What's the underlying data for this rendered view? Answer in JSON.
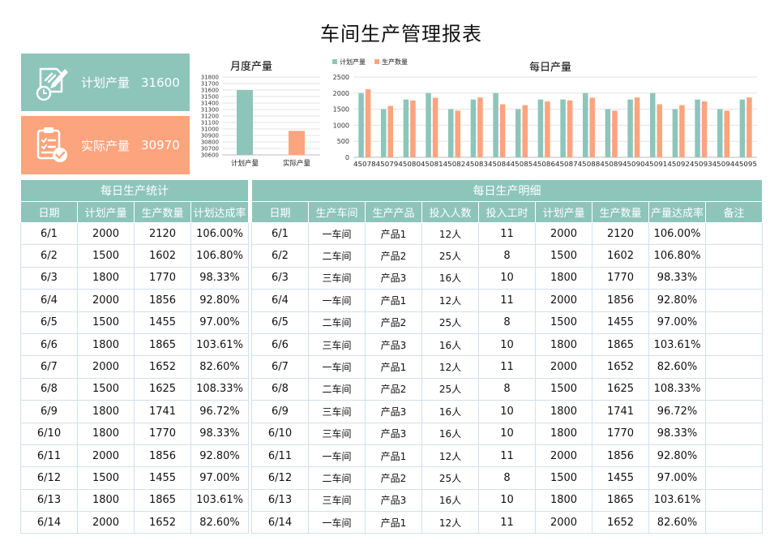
{
  "report": {
    "title": "车间生产管理报表"
  },
  "kpi": {
    "plan": {
      "label": "计划产量",
      "value": "31600",
      "icon": "clipboard-pen-clock-icon"
    },
    "actual": {
      "label": "实际产量",
      "value": "30970",
      "icon": "checklist-check-icon"
    }
  },
  "chart_data": [
    {
      "type": "bar",
      "title": "月度产量",
      "categories": [
        "计划产量",
        "实际产量"
      ],
      "values": [
        31600,
        30970
      ],
      "colors": [
        "#8dc5bb",
        "#fca47d"
      ],
      "ylim": [
        30600,
        31800
      ],
      "yticks": [
        30600,
        30700,
        30800,
        30900,
        31000,
        31100,
        31200,
        31300,
        31400,
        31500,
        31600,
        31700,
        31800
      ],
      "grid": true
    },
    {
      "type": "bar",
      "title": "每日产量",
      "categories": [
        "45078",
        "45079",
        "45080",
        "45081",
        "45082",
        "45083",
        "45084",
        "45085",
        "45086",
        "45087",
        "45088",
        "45089",
        "45090",
        "45091",
        "45092",
        "45093",
        "45094",
        "45095"
      ],
      "series": [
        {
          "name": "计划产量",
          "color": "#8dc5bb",
          "values": [
            2000,
            1500,
            1800,
            2000,
            1500,
            1800,
            2000,
            1500,
            1800,
            1800,
            2000,
            1500,
            1800,
            2000,
            1500,
            1800,
            1500,
            1800
          ]
        },
        {
          "name": "生产数量",
          "color": "#fca47d",
          "values": [
            2120,
            1602,
            1770,
            1856,
            1455,
            1865,
            1652,
            1625,
            1741,
            1770,
            1856,
            1455,
            1865,
            1652,
            1625,
            1741,
            1455,
            1865
          ]
        }
      ],
      "ylim": [
        0,
        2500
      ],
      "yticks": [
        0,
        500,
        1000,
        1500,
        2000,
        2500
      ],
      "legend": "top-left",
      "grid": true
    }
  ],
  "table_summary": {
    "title": "每日生产统计",
    "headers": [
      "日期",
      "计划产量",
      "生产数量",
      "计划达成率"
    ],
    "rows": [
      [
        "6/1",
        "2000",
        "2120",
        "106.00%"
      ],
      [
        "6/2",
        "1500",
        "1602",
        "106.80%"
      ],
      [
        "6/3",
        "1800",
        "1770",
        "98.33%"
      ],
      [
        "6/4",
        "2000",
        "1856",
        "92.80%"
      ],
      [
        "6/5",
        "1500",
        "1455",
        "97.00%"
      ],
      [
        "6/6",
        "1800",
        "1865",
        "103.61%"
      ],
      [
        "6/7",
        "2000",
        "1652",
        "82.60%"
      ],
      [
        "6/8",
        "1500",
        "1625",
        "108.33%"
      ],
      [
        "6/9",
        "1800",
        "1741",
        "96.72%"
      ],
      [
        "6/10",
        "1800",
        "1770",
        "98.33%"
      ],
      [
        "6/11",
        "2000",
        "1856",
        "92.80%"
      ],
      [
        "6/12",
        "1500",
        "1455",
        "97.00%"
      ],
      [
        "6/13",
        "1800",
        "1865",
        "103.61%"
      ],
      [
        "6/14",
        "2000",
        "1652",
        "82.60%"
      ]
    ]
  },
  "table_detail": {
    "title": "每日生产明细",
    "headers": [
      "日期",
      "生产车间",
      "生产产品",
      "投入人数",
      "投入工时",
      "计划产量",
      "生产数量",
      "产量达成率",
      "备注"
    ],
    "rows": [
      [
        "6/1",
        "一车间",
        "产品1",
        "12人",
        "11",
        "2000",
        "2120",
        "106.00%",
        ""
      ],
      [
        "6/2",
        "二车间",
        "产品2",
        "25人",
        "8",
        "1500",
        "1602",
        "106.80%",
        ""
      ],
      [
        "6/3",
        "三车间",
        "产品3",
        "16人",
        "10",
        "1800",
        "1770",
        "98.33%",
        ""
      ],
      [
        "6/4",
        "一车间",
        "产品1",
        "12人",
        "11",
        "2000",
        "1856",
        "92.80%",
        ""
      ],
      [
        "6/5",
        "二车间",
        "产品2",
        "25人",
        "8",
        "1500",
        "1455",
        "97.00%",
        ""
      ],
      [
        "6/6",
        "三车间",
        "产品3",
        "16人",
        "10",
        "1800",
        "1865",
        "103.61%",
        ""
      ],
      [
        "6/7",
        "一车间",
        "产品1",
        "12人",
        "11",
        "2000",
        "1652",
        "82.60%",
        ""
      ],
      [
        "6/8",
        "二车间",
        "产品2",
        "25人",
        "8",
        "1500",
        "1625",
        "108.33%",
        ""
      ],
      [
        "6/9",
        "三车间",
        "产品3",
        "16人",
        "10",
        "1800",
        "1741",
        "96.72%",
        ""
      ],
      [
        "6/10",
        "三车间",
        "产品3",
        "16人",
        "10",
        "1800",
        "1770",
        "98.33%",
        ""
      ],
      [
        "6/11",
        "一车间",
        "产品1",
        "12人",
        "11",
        "2000",
        "1856",
        "92.80%",
        ""
      ],
      [
        "6/12",
        "二车间",
        "产品2",
        "25人",
        "8",
        "1500",
        "1455",
        "97.00%",
        ""
      ],
      [
        "6/13",
        "三车间",
        "产品3",
        "16人",
        "10",
        "1800",
        "1865",
        "103.61%",
        ""
      ],
      [
        "6/14",
        "一车间",
        "产品1",
        "12人",
        "11",
        "2000",
        "1652",
        "82.60%",
        ""
      ]
    ]
  }
}
